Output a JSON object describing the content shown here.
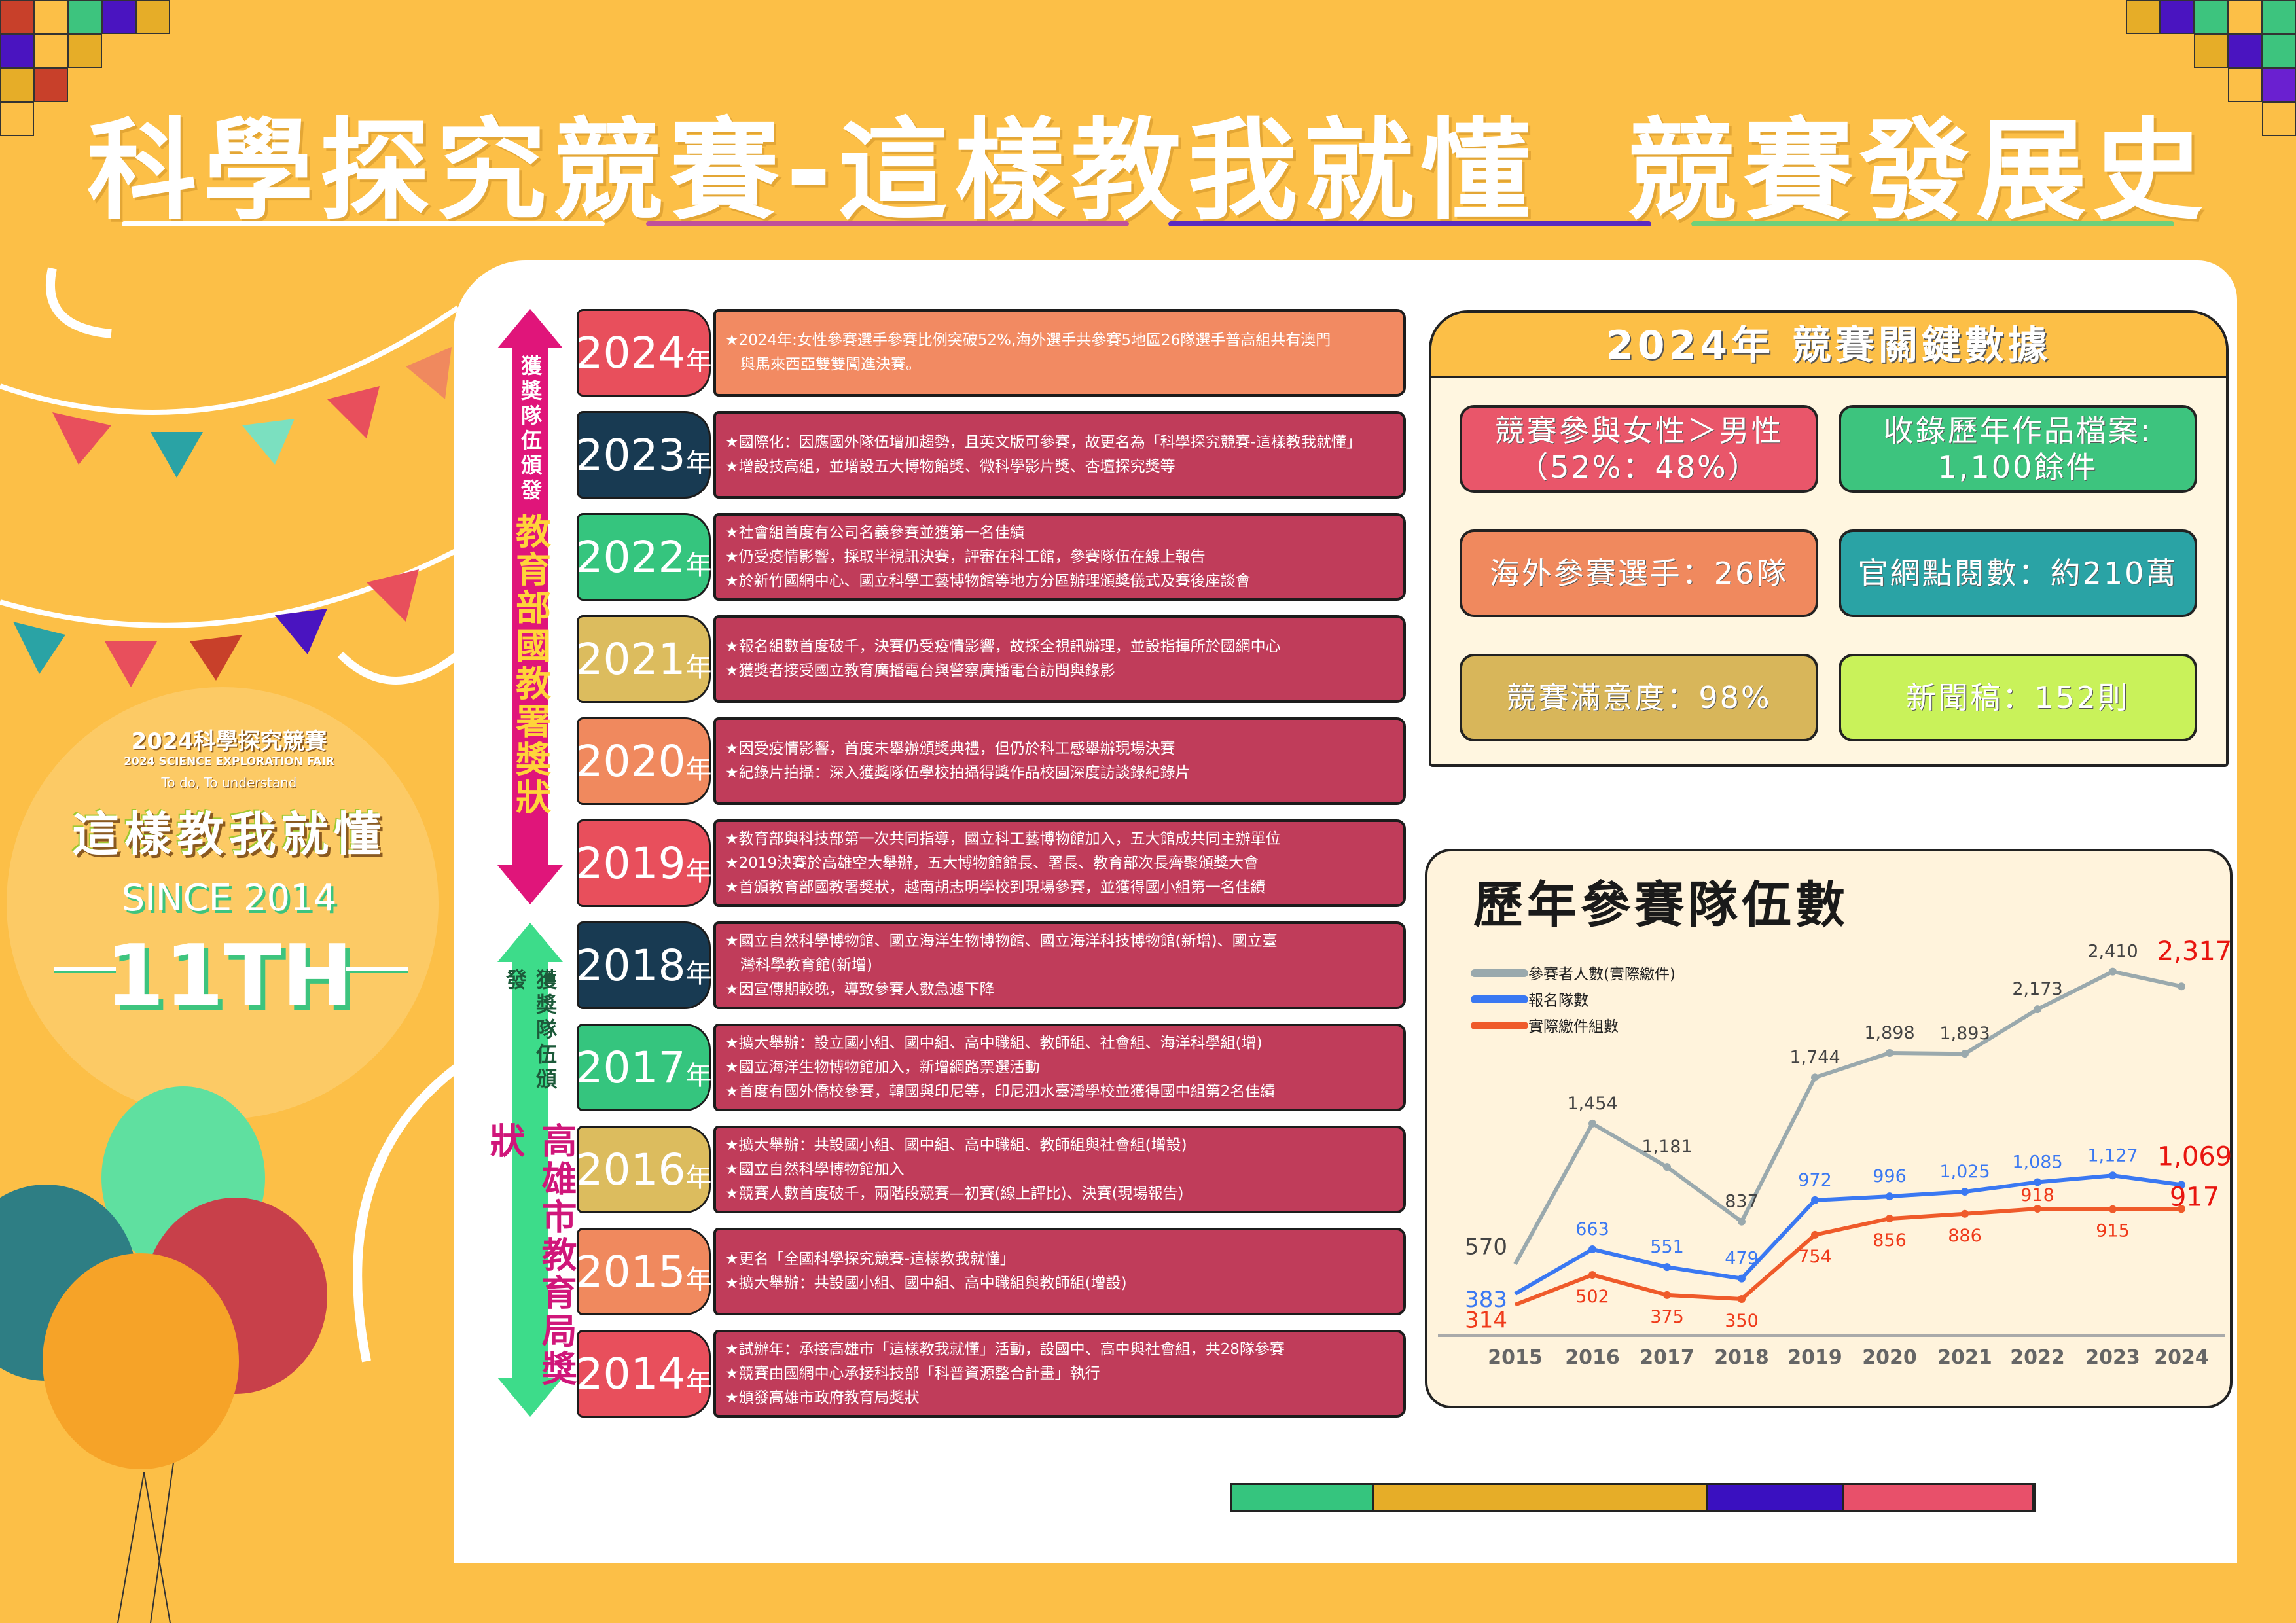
{
  "title": "科學探究競賽-這樣教我就懂  競賽發展史",
  "underline_colors": [
    "#ffffff",
    "#c0509a",
    "#5a2ac0",
    "#6fd07a"
  ],
  "logo": {
    "line1": "2024科學探究競賽",
    "line2": "2024 SCIENCE EXPLORATION FAIR",
    "line3": "To do, To understand",
    "mark": "這樣教我就懂",
    "since": "SINCE 2014",
    "edition": "11TH"
  },
  "award_labels": [
    {
      "small": "獲獎隊伍頒發",
      "big": "教育部國教署獎狀",
      "color": "#e0157a"
    },
    {
      "small": "獲獎隊伍頒發",
      "big": "高雄市教育局獎狀",
      "color": "#3ddc8a"
    }
  ],
  "year_suffix": "年",
  "timeline": [
    {
      "year": "2024",
      "color": "#e84f5c",
      "box": "#f28a62",
      "items": [
        "★2024年:女性參賽選手參賽比例突破52%,海外選手共參賽5地區26隊選手普高組共有澳門",
        "　與馬來西亞雙雙闖進決賽。"
      ]
    },
    {
      "year": "2023",
      "color": "#183a52",
      "box": "#c03c5a",
      "items": [
        "★國際化：因應國外隊伍增加趨勢，且英文版可參賽，故更名為「科學探究競賽-這樣教我就懂」",
        "★增設技高組，並增設五大博物館獎、微科學影片獎、杏壇探究獎等"
      ]
    },
    {
      "year": "2022",
      "color": "#35c57e",
      "box": "#c03c5a",
      "items": [
        "★社會組首度有公司名義參賽並獲第一名佳績",
        "★仍受疫情影響，採取半視訊決賽，評審在科工館，參賽隊伍在線上報告",
        "★於新竹國網中心、國立科學工藝博物館等地方分區辦理頒獎儀式及賽後座談會"
      ]
    },
    {
      "year": "2021",
      "color": "#dcbc5e",
      "box": "#c03c5a",
      "items": [
        "★報名組數首度破千，決賽仍受疫情影響，故採全視訊辦理，並設指揮所於國網中心",
        "★獲獎者接受國立教育廣播電台與警察廣播電台訪問與錄影"
      ]
    },
    {
      "year": "2020",
      "color": "#f0895e",
      "box": "#c03c5a",
      "items": [
        "★因受疫情影響，首度未舉辦頒獎典禮，但仍於科工感舉辦現場決賽",
        "★紀錄片拍攝：深入獲獎隊伍學校拍攝得獎作品校園深度訪談錄紀錄片"
      ]
    },
    {
      "year": "2019",
      "color": "#e84f5c",
      "box": "#c03c5a",
      "items": [
        "★教育部與科技部第一次共同指導，國立科工藝博物館加入，五大館成共同主辦單位",
        "★2019決賽於高雄空大舉辦，五大博物館館長、署長、教育部次長齊聚頒獎大會",
        "★首頒教育部國教署獎狀，越南胡志明學校到現場參賽，並獲得國小組第一名佳績"
      ]
    },
    {
      "year": "2018",
      "color": "#183a52",
      "box": "#c03c5a",
      "items": [
        "★國立自然科學博物館、國立海洋生物博物館、國立海洋科技博物館(新增)、國立臺",
        "　灣科學教育館(新增)",
        "★因宣傳期較晚，導致參賽人數急遽下降"
      ]
    },
    {
      "year": "2017",
      "color": "#35c57e",
      "box": "#c03c5a",
      "items": [
        "★擴大舉辦：設立國小組、國中組、高中職組、教師組、社會組、海洋科學組(增)",
        "★國立海洋生物博物館加入，新增網路票選活動",
        "★首度有國外僑校參賽，韓國與印尼等，印尼泗水臺灣學校並獲得國中組第2名佳績"
      ]
    },
    {
      "year": "2016",
      "color": "#dcbc5e",
      "box": "#c03c5a",
      "items": [
        "★擴大舉辦：共設國小組、國中組、高中職組、教師組與社會組(增設)",
        "★國立自然科學博物館加入",
        "★競賽人數首度破千，兩階段競賽—初賽(線上評比)、決賽(現場報告)"
      ]
    },
    {
      "year": "2015",
      "color": "#f0895e",
      "box": "#c03c5a",
      "items": [
        "★更名「全國科學探究競賽-這樣教我就懂」",
        "★擴大舉辦：共設國小組、國中組、高中職組與教師組(增設)"
      ]
    },
    {
      "year": "2014",
      "color": "#e84f5c",
      "box": "#c03c5a",
      "items": [
        "★試辦年：承接高雄市「這樣教我就懂」活動，設國中、高中與社會組，共28隊參賽",
        "★競賽由國網中心承接科技部「科普資源整合計畫」執行",
        "★頒發高雄市政府教育局獎狀"
      ]
    }
  ],
  "key_data": {
    "title": "2024年 競賽關鍵數據",
    "cards": [
      {
        "lines": [
          "競賽參與女性＞男性",
          "（52%：48%）"
        ],
        "color": "#e9566a"
      },
      {
        "lines": [
          "收錄歷年作品檔案:",
          "1,100餘件"
        ],
        "color": "#3dc47e"
      },
      {
        "lines": [
          "海外參賽選手：26隊"
        ],
        "color": "#f0895e"
      },
      {
        "lines": [
          "官網點閱數：約210萬"
        ],
        "color": "#2aa3a5"
      },
      {
        "lines": [
          "競賽滿意度：98%"
        ],
        "color": "#d8b65a"
      },
      {
        "lines": [
          "新聞稿：152則"
        ],
        "color": "#c9f25a"
      }
    ]
  },
  "chart_data": {
    "type": "line",
    "title": "歷年參賽隊伍數",
    "categories": [
      "2015",
      "2016",
      "2017",
      "2018",
      "2019",
      "2020",
      "2021",
      "2022",
      "2023",
      "2024"
    ],
    "series": [
      {
        "name": "參賽者人數(實際繳件)",
        "color": "#9aa9ad",
        "label_color": "#444444",
        "values": [
          570,
          1454,
          1181,
          837,
          1744,
          1898,
          1893,
          2173,
          2410,
          2317
        ]
      },
      {
        "name": "報名隊數",
        "color": "#3a78f2",
        "label_color": "#3a78f2",
        "values": [
          383,
          663,
          551,
          479,
          972,
          996,
          1025,
          1085,
          1127,
          1069
        ]
      },
      {
        "name": "實際繳件組數",
        "color": "#ef5a2a",
        "label_color": "#ef3a1a",
        "values": [
          314,
          502,
          375,
          350,
          754,
          856,
          886,
          918,
          915,
          917
        ]
      }
    ],
    "highlight_color": "#e8150f",
    "legend": "top-left",
    "grid": false
  },
  "bottom_bar": [
    "#35c57e",
    "#e6ad28",
    "#3a10c0",
    "#e8506a"
  ]
}
